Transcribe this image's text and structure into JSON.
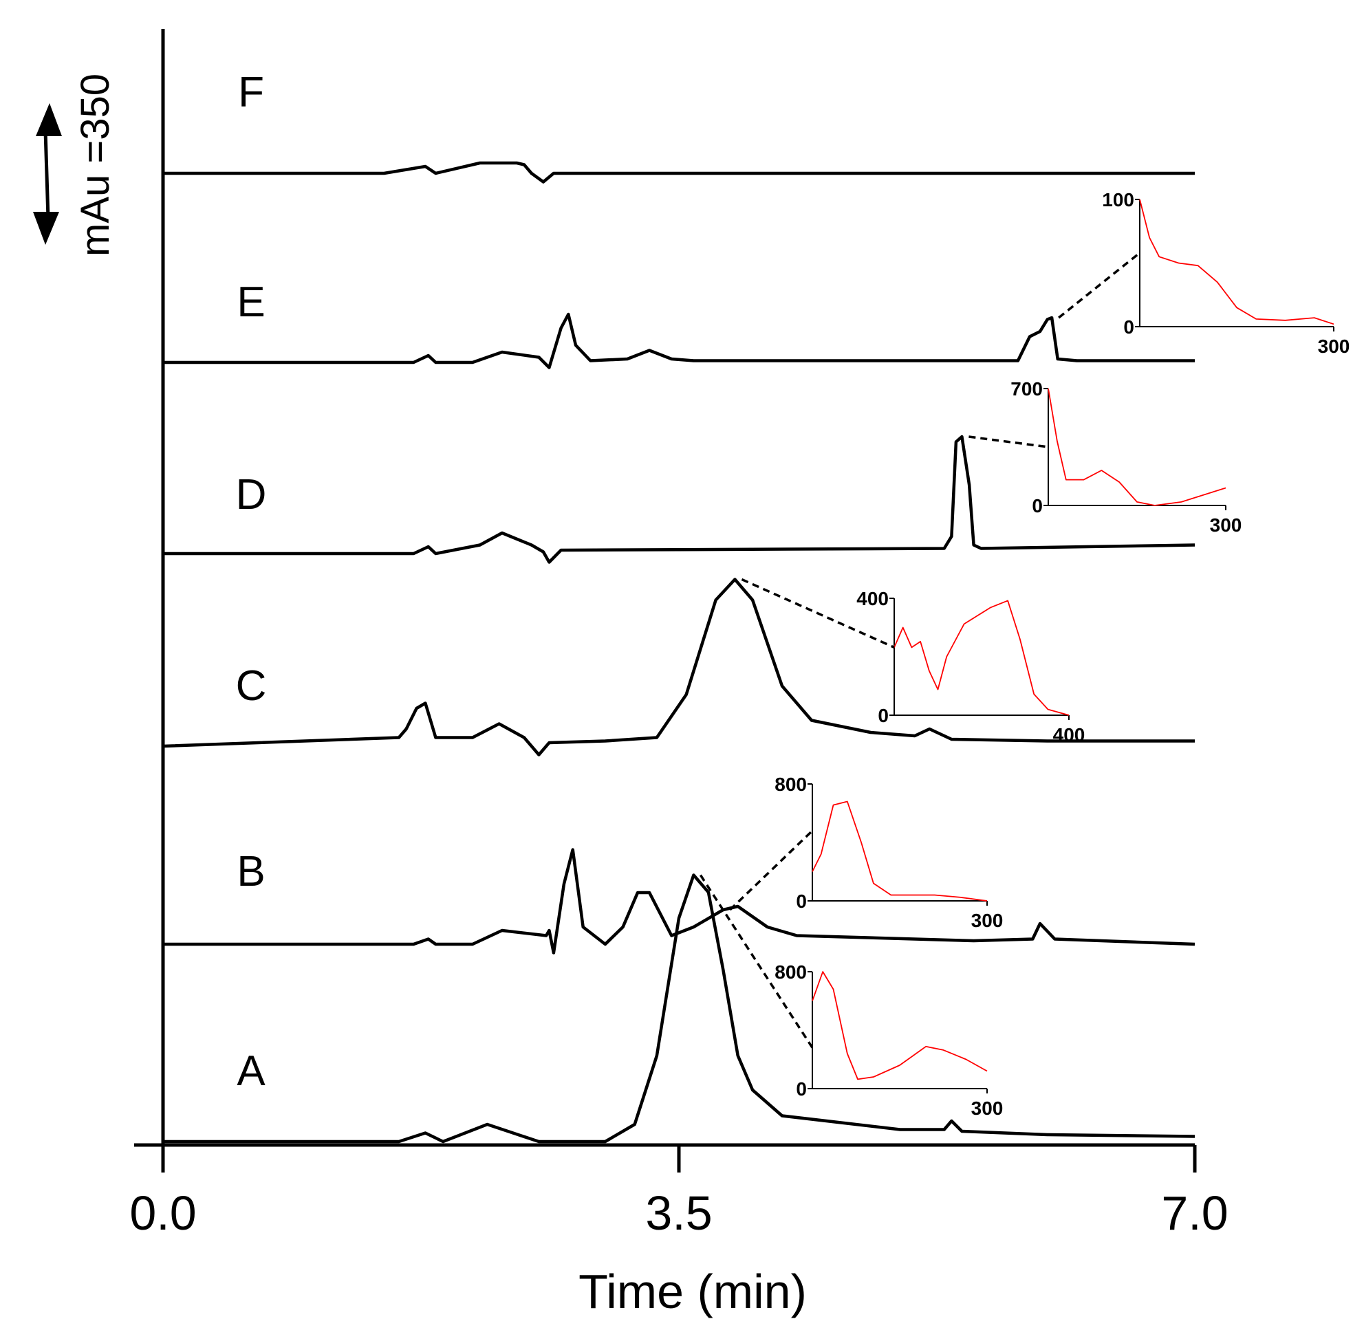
{
  "chart_data": {
    "type": "line",
    "xlabel": "Time (min)",
    "xlim": [
      0,
      7
    ],
    "x_ticks": [
      "0.0",
      "3.5",
      "7.0"
    ],
    "scale_bar_label": "mAu =350",
    "series": [
      {
        "name": "A",
        "points": [
          [
            0,
            0
          ],
          [
            1.6,
            0
          ],
          [
            1.78,
            0.05
          ],
          [
            1.9,
            0
          ],
          [
            2.2,
            0.1
          ],
          [
            2.55,
            0
          ],
          [
            3.0,
            0
          ],
          [
            3.2,
            0.1
          ],
          [
            3.35,
            0.5
          ],
          [
            3.5,
            1.3
          ],
          [
            3.6,
            1.55
          ],
          [
            3.7,
            1.45
          ],
          [
            3.8,
            1.0
          ],
          [
            3.9,
            0.5
          ],
          [
            4.0,
            0.3
          ],
          [
            4.2,
            0.15
          ],
          [
            5.0,
            0.07
          ],
          [
            5.3,
            0.07
          ],
          [
            5.35,
            0.12
          ],
          [
            5.42,
            0.06
          ],
          [
            6.0,
            0.04
          ],
          [
            7.0,
            0.03
          ]
        ],
        "inset": {
          "x_max": "300",
          "y_max": "800",
          "y_min": "0",
          "peak_time": 3.6,
          "spectrum": [
            [
              0,
              0.75
            ],
            [
              0.06,
              1.0
            ],
            [
              0.12,
              0.85
            ],
            [
              0.2,
              0.3
            ],
            [
              0.26,
              0.08
            ],
            [
              0.35,
              0.1
            ],
            [
              0.5,
              0.2
            ],
            [
              0.65,
              0.36
            ],
            [
              0.75,
              0.33
            ],
            [
              0.88,
              0.25
            ],
            [
              1.0,
              0.15
            ]
          ]
        }
      },
      {
        "name": "B",
        "points": [
          [
            0,
            0
          ],
          [
            1.7,
            0
          ],
          [
            1.8,
            0.03
          ],
          [
            1.85,
            0
          ],
          [
            2.1,
            0
          ],
          [
            2.3,
            0.08
          ],
          [
            2.6,
            0.05
          ],
          [
            2.62,
            0.08
          ],
          [
            2.65,
            -0.05
          ],
          [
            2.72,
            0.35
          ],
          [
            2.78,
            0.55
          ],
          [
            2.85,
            0.1
          ],
          [
            3.0,
            0
          ],
          [
            3.12,
            0.1
          ],
          [
            3.22,
            0.3
          ],
          [
            3.3,
            0.3
          ],
          [
            3.45,
            0.05
          ],
          [
            3.6,
            0.1
          ],
          [
            3.8,
            0.2
          ],
          [
            3.9,
            0.22
          ],
          [
            4.1,
            0.1
          ],
          [
            4.3,
            0.05
          ],
          [
            5.5,
            0.02
          ],
          [
            5.9,
            0.03
          ],
          [
            5.95,
            0.12
          ],
          [
            6.05,
            0.03
          ],
          [
            7.0,
            0
          ]
        ],
        "inset": {
          "x_max": "300",
          "y_max": "800",
          "y_min": "0",
          "peak_time": 3.8,
          "spectrum": [
            [
              0,
              0.25
            ],
            [
              0.05,
              0.4
            ],
            [
              0.12,
              0.82
            ],
            [
              0.2,
              0.85
            ],
            [
              0.28,
              0.5
            ],
            [
              0.35,
              0.15
            ],
            [
              0.45,
              0.05
            ],
            [
              0.7,
              0.05
            ],
            [
              0.85,
              0.03
            ],
            [
              1.0,
              0
            ]
          ]
        }
      },
      {
        "name": "C",
        "points": [
          [
            0,
            0
          ],
          [
            1.6,
            0.05
          ],
          [
            1.65,
            0.1
          ],
          [
            1.72,
            0.22
          ],
          [
            1.78,
            0.25
          ],
          [
            1.85,
            0.05
          ],
          [
            2.1,
            0.05
          ],
          [
            2.28,
            0.13
          ],
          [
            2.45,
            0.05
          ],
          [
            2.5,
            0
          ],
          [
            2.55,
            -0.05
          ],
          [
            2.6,
            0
          ],
          [
            2.62,
            0.02
          ],
          [
            3.0,
            0.03
          ],
          [
            3.35,
            0.05
          ],
          [
            3.55,
            0.3
          ],
          [
            3.75,
            0.85
          ],
          [
            3.88,
            0.97
          ],
          [
            4.0,
            0.85
          ],
          [
            4.2,
            0.35
          ],
          [
            4.4,
            0.15
          ],
          [
            4.8,
            0.08
          ],
          [
            5.1,
            0.06
          ],
          [
            5.2,
            0.1
          ],
          [
            5.35,
            0.04
          ],
          [
            6.0,
            0.03
          ],
          [
            7.0,
            0.03
          ]
        ],
        "inset": {
          "x_max": "400",
          "y_max": "400",
          "y_min": "0",
          "peak_time": 3.88,
          "spectrum": [
            [
              0,
              0.58
            ],
            [
              0.05,
              0.75
            ],
            [
              0.1,
              0.58
            ],
            [
              0.15,
              0.63
            ],
            [
              0.2,
              0.38
            ],
            [
              0.25,
              0.22
            ],
            [
              0.3,
              0.5
            ],
            [
              0.4,
              0.78
            ],
            [
              0.55,
              0.92
            ],
            [
              0.65,
              0.98
            ],
            [
              0.72,
              0.65
            ],
            [
              0.8,
              0.18
            ],
            [
              0.88,
              0.05
            ],
            [
              1.0,
              0
            ]
          ]
        }
      },
      {
        "name": "D",
        "points": [
          [
            0,
            0
          ],
          [
            1.7,
            0
          ],
          [
            1.8,
            0.04
          ],
          [
            1.85,
            0
          ],
          [
            2.15,
            0.05
          ],
          [
            2.3,
            0.12
          ],
          [
            2.5,
            0.05
          ],
          [
            2.58,
            0.01
          ],
          [
            2.62,
            -0.05
          ],
          [
            2.7,
            0.02
          ],
          [
            5.3,
            0.03
          ],
          [
            5.35,
            0.1
          ],
          [
            5.38,
            0.65
          ],
          [
            5.42,
            0.68
          ],
          [
            5.47,
            0.4
          ],
          [
            5.5,
            0.05
          ],
          [
            5.55,
            0.03
          ],
          [
            7.0,
            0.05
          ]
        ],
        "inset": {
          "x_max": "300",
          "y_max": "700",
          "y_min": "0",
          "peak_time": 5.42,
          "spectrum": [
            [
              0,
              1.0
            ],
            [
              0.05,
              0.55
            ],
            [
              0.1,
              0.22
            ],
            [
              0.2,
              0.22
            ],
            [
              0.3,
              0.3
            ],
            [
              0.4,
              0.2
            ],
            [
              0.5,
              0.03
            ],
            [
              0.6,
              0
            ],
            [
              0.75,
              0.03
            ],
            [
              1.0,
              0.15
            ]
          ]
        }
      },
      {
        "name": "E",
        "points": [
          [
            0,
            0
          ],
          [
            1.7,
            0
          ],
          [
            1.8,
            0.04
          ],
          [
            1.85,
            0
          ],
          [
            2.1,
            0
          ],
          [
            2.3,
            0.06
          ],
          [
            2.55,
            0.03
          ],
          [
            2.62,
            -0.03
          ],
          [
            2.7,
            0.2
          ],
          [
            2.75,
            0.28
          ],
          [
            2.8,
            0.1
          ],
          [
            2.9,
            0.01
          ],
          [
            3.15,
            0.02
          ],
          [
            3.3,
            0.07
          ],
          [
            3.45,
            0.02
          ],
          [
            3.6,
            0.01
          ],
          [
            5.8,
            0.01
          ],
          [
            5.88,
            0.15
          ],
          [
            5.95,
            0.18
          ],
          [
            6.0,
            0.25
          ],
          [
            6.03,
            0.26
          ],
          [
            6.07,
            0.02
          ],
          [
            6.2,
            0.01
          ],
          [
            7.0,
            0.01
          ]
        ],
        "inset": {
          "x_max": "300",
          "y_max": "100",
          "y_min": "0",
          "peak_time": 6.03,
          "spectrum": [
            [
              0,
              1.0
            ],
            [
              0.05,
              0.7
            ],
            [
              0.1,
              0.55
            ],
            [
              0.2,
              0.5
            ],
            [
              0.3,
              0.48
            ],
            [
              0.4,
              0.35
            ],
            [
              0.5,
              0.15
            ],
            [
              0.6,
              0.06
            ],
            [
              0.75,
              0.05
            ],
            [
              0.9,
              0.07
            ],
            [
              1.0,
              0.02
            ]
          ]
        }
      },
      {
        "name": "F",
        "points": [
          [
            0,
            0
          ],
          [
            1.5,
            0
          ],
          [
            1.78,
            0.04
          ],
          [
            1.85,
            0
          ],
          [
            2.15,
            0.06
          ],
          [
            2.4,
            0.06
          ],
          [
            2.45,
            0.05
          ],
          [
            2.5,
            0
          ],
          [
            2.58,
            -0.05
          ],
          [
            2.65,
            0
          ],
          [
            3.0,
            0
          ],
          [
            7.0,
            0
          ]
        ],
        "inset": null
      }
    ]
  }
}
